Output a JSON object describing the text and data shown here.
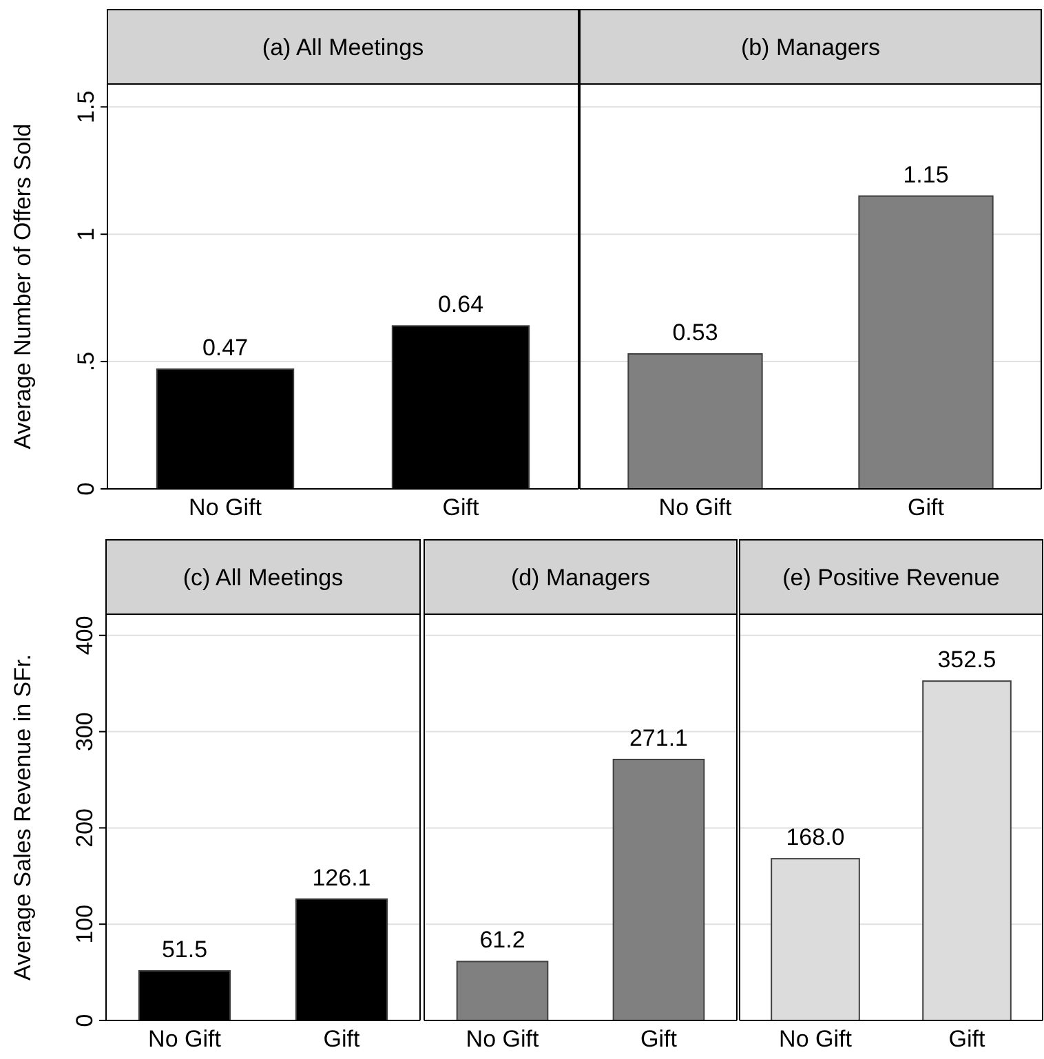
{
  "chart_data": [
    {
      "type": "bar",
      "title": "(a) All Meetings",
      "ylabel": "Average Number of Offers Sold",
      "categories": [
        "No Gift",
        "Gift"
      ],
      "values": [
        0.47,
        0.64
      ],
      "color": "#000000",
      "data_labels": true,
      "ylim": [
        0,
        1.59
      ],
      "yticks": [
        0,
        {
          "value": 0.5,
          "label": ".5"
        },
        1,
        1.5
      ],
      "grid": "y"
    },
    {
      "type": "bar",
      "title": "(b) Managers",
      "categories": [
        "No Gift",
        "Gift"
      ],
      "values": [
        0.53,
        1.15
      ],
      "color": "#808080",
      "data_labels": true,
      "ylim": [
        0,
        1.59
      ],
      "yticks": [
        0,
        0.5,
        1,
        1.5
      ],
      "grid": "y",
      "tick_labels": "x"
    },
    {
      "type": "bar",
      "title": "(c) All Meetings",
      "ylabel": "Average Sales Revenue in SFr.",
      "categories": [
        "No Gift",
        "Gift"
      ],
      "values": [
        51.5,
        126.1
      ],
      "value_labels": [
        "51.5",
        "126.1"
      ],
      "color": "#000000",
      "ylim": [
        0,
        422
      ],
      "yticks": [
        0,
        100,
        200,
        300,
        400
      ],
      "grid": "y"
    },
    {
      "type": "bar",
      "title": "(d) Managers",
      "categories": [
        "No Gift",
        "Gift"
      ],
      "values": [
        61.2,
        271.1
      ],
      "value_labels": [
        "61.2",
        "271.1"
      ],
      "color": "#808080",
      "ylim": [
        0,
        422
      ],
      "yticks": [
        0,
        100,
        200,
        300,
        400
      ],
      "grid": "y",
      "tick_labels": "x"
    },
    {
      "type": "bar",
      "title": "(e) Positive Revenue",
      "categories": [
        "No Gift",
        "Gift"
      ],
      "values": [
        168.0,
        352.5
      ],
      "value_labels": [
        "168.0",
        "352.5"
      ],
      "color": "#dcdcdc",
      "ylim": [
        0,
        422
      ],
      "yticks": [
        0,
        100,
        200,
        300,
        400
      ],
      "grid": "y",
      "tick_labels": "x"
    }
  ]
}
